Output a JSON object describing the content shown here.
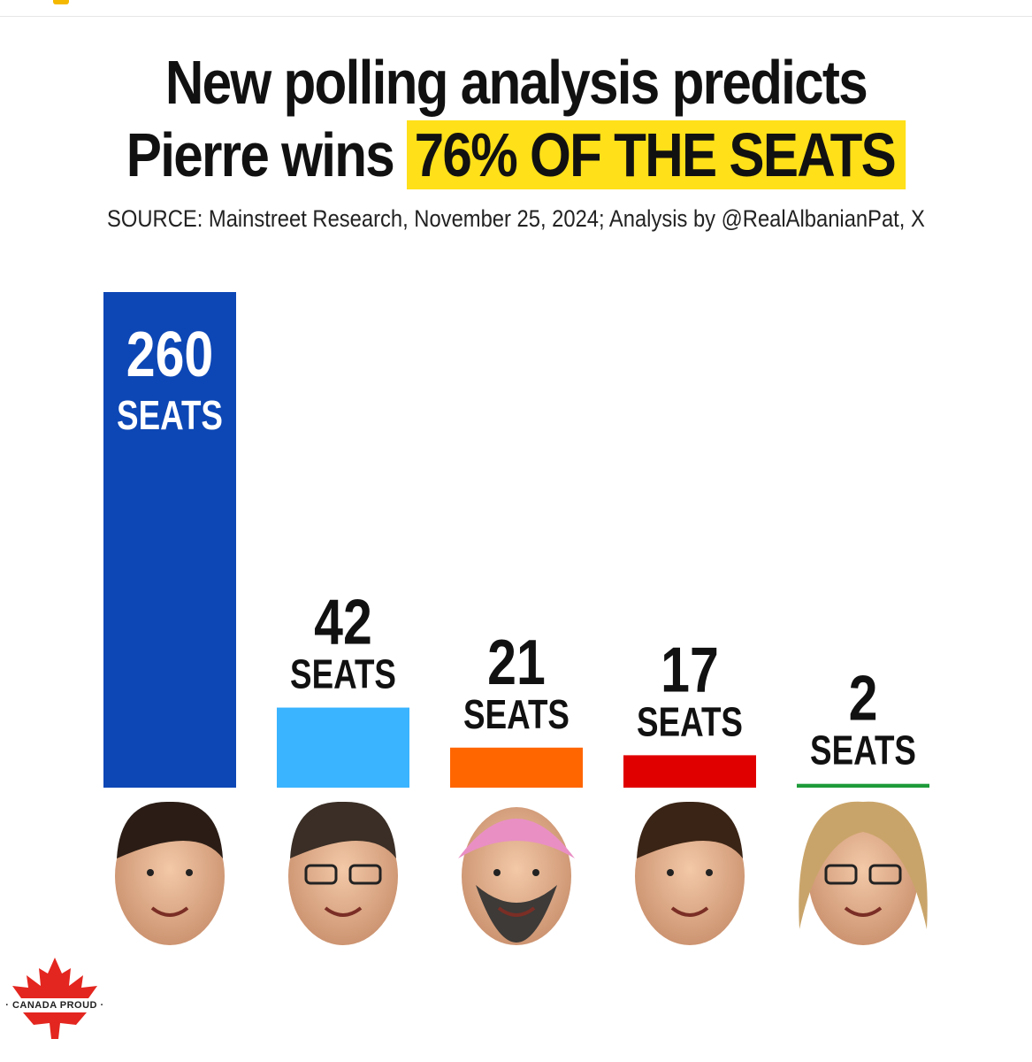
{
  "headline": {
    "line1": "New polling analysis predicts",
    "line2_prefix": "Pierre wins",
    "line2_highlight": "76% OF THE SEATS"
  },
  "source": "SOURCE: Mainstreet Research, November 25, 2024; Analysis by @RealAlbanianPat, X",
  "logo_text": "· CANADA PROUD ·",
  "colors": {
    "highlight": "#ffe019",
    "logo_red": "#e3261f"
  },
  "chart_data": {
    "type": "bar",
    "unit": "SEATS",
    "values": [
      260,
      42,
      21,
      17,
      2
    ],
    "colors": [
      "#0d47b5",
      "#3ab4ff",
      "#ff6600",
      "#e00000",
      "#1e9b3a"
    ],
    "portraits": [
      "portrait-1",
      "portrait-2",
      "portrait-3",
      "portrait-4",
      "portrait-5"
    ]
  }
}
